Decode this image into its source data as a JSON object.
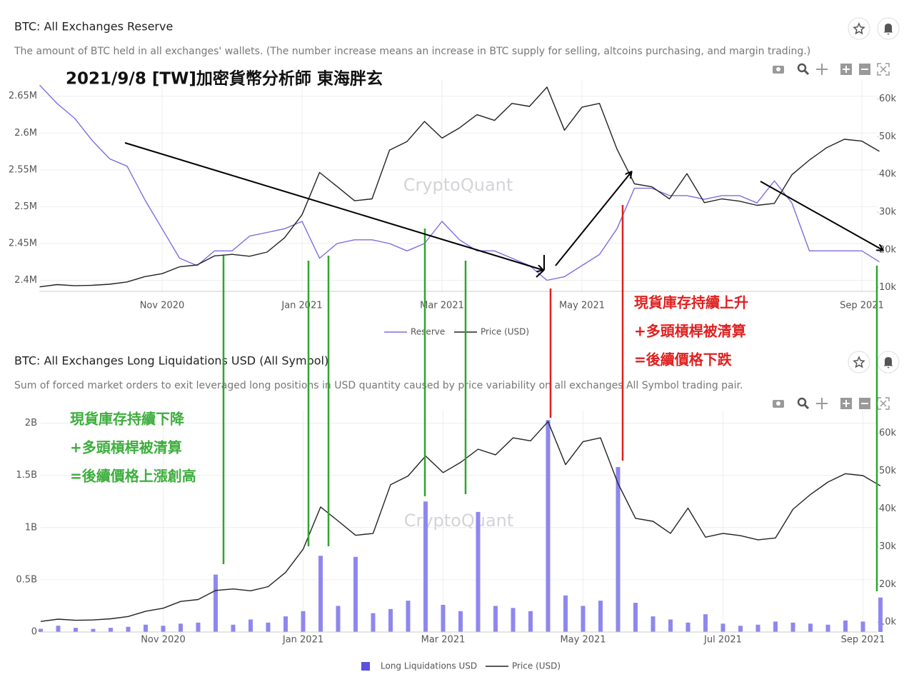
{
  "chart_data": [
    {
      "type": "line",
      "title": "BTC: All Exchanges Reserve",
      "subtitle": "The amount of BTC held in all exchanges' wallets. (The number increase means an increase in BTC supply for selling, altcoins purchasing, and margin trading.)",
      "watermark": "CryptoQuant",
      "categories": [
        null,
        null,
        null,
        null,
        null,
        null,
        null,
        "Nov 2020",
        null,
        null,
        null,
        null,
        null,
        null,
        null,
        "Jan 2021",
        null,
        null,
        null,
        null,
        null,
        null,
        null,
        "Mar 2021",
        null,
        null,
        null,
        null,
        null,
        null,
        null,
        "May 2021",
        null,
        null,
        null,
        null,
        null,
        null,
        null,
        null,
        null,
        null,
        null,
        null,
        null,
        null,
        null,
        "Sep 2021",
        null
      ],
      "series": [
        {
          "name": "Reserve",
          "color": "#7a6fe0",
          "values": [
            2665000,
            2640000,
            2620000,
            2590000,
            2565000,
            2555000,
            2510000,
            2470000,
            2430000,
            2420000,
            2440000,
            2440000,
            2460000,
            2465000,
            2470000,
            2480000,
            2430000,
            2450000,
            2455000,
            2455000,
            2450000,
            2440000,
            2450000,
            2480000,
            2455000,
            2440000,
            2440000,
            2430000,
            2420000,
            2400000,
            2405000,
            2420000,
            2435000,
            2470000,
            2525000,
            2525000,
            2515000,
            2515000,
            2510000,
            2515000,
            2515000,
            2505000,
            2535000,
            2505000,
            2440000,
            2440000,
            2440000,
            2440000,
            2425000
          ]
        },
        {
          "name": "Price (USD)",
          "color": "#222222",
          "axis": "y2",
          "values": [
            10200,
            10800,
            10500,
            10600,
            10900,
            11500,
            12900,
            13700,
            15500,
            16000,
            18400,
            18800,
            18300,
            19400,
            23200,
            29300,
            40500,
            36800,
            33000,
            33500,
            46400,
            48700,
            54000,
            49600,
            52300,
            55800,
            54300,
            58800,
            58000,
            63100,
            51700,
            57800,
            58800,
            46700,
            37500,
            36700,
            33500,
            40200,
            32500,
            33500,
            32900,
            31800,
            32300,
            39900,
            43800,
            47100,
            49300,
            48800,
            46100
          ]
        }
      ],
      "ylim": [
        2385000,
        2672000
      ],
      "yticks": [
        {
          "value": 2400000,
          "label": "2.4M"
        },
        {
          "value": 2450000,
          "label": "2.45M"
        },
        {
          "value": 2500000,
          "label": "2.5M"
        },
        {
          "value": 2550000,
          "label": "2.55M"
        },
        {
          "value": 2600000,
          "label": "2.6M"
        },
        {
          "value": 2650000,
          "label": "2.65M"
        }
      ],
      "y2lim": [
        9000,
        65000
      ],
      "y2ticks": [
        {
          "value": 10000,
          "label": "10k"
        },
        {
          "value": 20000,
          "label": "20k"
        },
        {
          "value": 30000,
          "label": "30k"
        },
        {
          "value": 40000,
          "label": "40k"
        },
        {
          "value": 50000,
          "label": "50k"
        },
        {
          "value": 60000,
          "label": "60k"
        }
      ],
      "grid": true
    },
    {
      "type": "bar",
      "title": "BTC: All Exchanges Long Liquidations USD (All Symbol)",
      "subtitle": "Sum of forced market orders to exit leveraged long positions in USD quantity caused by price variability on all exchanges All Symbol trading pair.",
      "watermark": "CryptoQuant",
      "categories": [
        null,
        null,
        null,
        null,
        null,
        null,
        null,
        "Nov 2020",
        null,
        null,
        null,
        null,
        null,
        null,
        null,
        "Jan 2021",
        null,
        null,
        null,
        null,
        null,
        null,
        null,
        "Mar 2021",
        null,
        null,
        null,
        null,
        null,
        null,
        null,
        "May 2021",
        null,
        null,
        null,
        null,
        null,
        null,
        null,
        "Jul 2021",
        null,
        null,
        null,
        null,
        null,
        null,
        null,
        "Sep 2021",
        null
      ],
      "series": [
        {
          "name": "Long Liquidations USD",
          "color": "#8f87ee",
          "legend_color": "#5b50e0",
          "values": [
            30000000,
            60000000,
            40000000,
            30000000,
            40000000,
            50000000,
            70000000,
            60000000,
            80000000,
            90000000,
            550000000,
            70000000,
            120000000,
            90000000,
            150000000,
            200000000,
            730000000,
            250000000,
            720000000,
            180000000,
            220000000,
            300000000,
            1250000000,
            260000000,
            200000000,
            1150000000,
            250000000,
            230000000,
            200000000,
            2030000000,
            350000000,
            250000000,
            300000000,
            1580000000,
            280000000,
            150000000,
            120000000,
            90000000,
            170000000,
            80000000,
            60000000,
            70000000,
            100000000,
            90000000,
            80000000,
            70000000,
            110000000,
            100000000,
            330000000
          ]
        },
        {
          "name": "Price (USD)",
          "color": "#222222",
          "type": "line",
          "axis": "y2",
          "values": [
            10200,
            10800,
            10500,
            10600,
            10900,
            11500,
            12900,
            13700,
            15500,
            16000,
            18400,
            18800,
            18300,
            19400,
            23200,
            29300,
            40500,
            36800,
            33000,
            33500,
            46400,
            48700,
            54000,
            49600,
            52300,
            55800,
            54300,
            58800,
            58000,
            63100,
            51700,
            57800,
            58800,
            46700,
            37500,
            36700,
            33500,
            40200,
            32500,
            33500,
            32900,
            31800,
            32300,
            39900,
            43800,
            47100,
            49300,
            48800,
            46100
          ]
        }
      ],
      "ylim": [
        0,
        2120000000
      ],
      "yticks": [
        0,
        {
          "value": 500000000,
          "label": "0.5B"
        },
        {
          "value": 1000000000,
          "label": "1B"
        },
        {
          "value": 1500000000,
          "label": "1.5B"
        },
        {
          "value": 2000000000,
          "label": "2B"
        }
      ],
      "y2lim": [
        7400,
        66000
      ],
      "y2ticks": [
        {
          "value": 10000,
          "label": "10k"
        },
        {
          "value": 20000,
          "label": "20k"
        },
        {
          "value": 30000,
          "label": "30k"
        },
        {
          "value": 40000,
          "label": "40k"
        },
        {
          "value": 50000,
          "label": "50k"
        },
        {
          "value": 60000,
          "label": "60k"
        }
      ],
      "grid": true
    }
  ],
  "annotations": {
    "author": "2021/9/8 [TW]加密貨幣分析師 東海胖玄",
    "red_note": [
      "現貨庫存持續上升",
      "+多頭槓桿被清算",
      "=後續價格下跌"
    ],
    "green_note": [
      "現貨庫存持續下降",
      "+多頭槓桿被清算",
      "=後續價格上漲創高"
    ]
  }
}
